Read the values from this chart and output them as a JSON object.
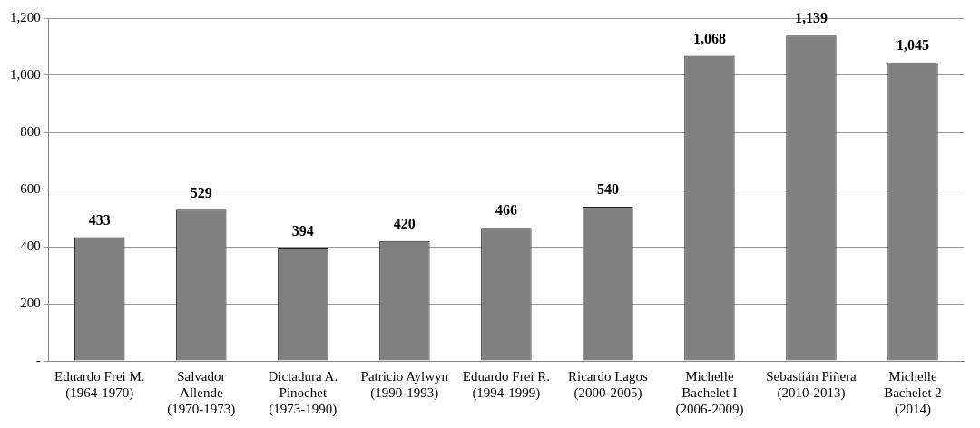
{
  "chart_data": {
    "type": "bar",
    "categories": [
      "Eduardo Frei M. (1964-1970)",
      "Salvador Allende (1970-1973)",
      "Dictadura A. Pinochet (1973-1990)",
      "Patricio Aylwyn (1990-1993)",
      "Eduardo Frei R. (1994-1999)",
      "Ricardo Lagos (2000-2005)",
      "Michelle Bachelet I (2006-2009)",
      "Sebastián Piñera (2010-2013)",
      "Michelle Bachelet 2 (2014)"
    ],
    "values": [
      433,
      529,
      394,
      420,
      466,
      540,
      1068,
      1139,
      1045
    ],
    "value_labels": [
      "433",
      "529",
      "394",
      "420",
      "466",
      "540",
      "1,068",
      "1,139",
      "1,045"
    ],
    "color": "#808080",
    "ylim": [
      0,
      1200
    ],
    "yticks": [
      {
        "value": 0,
        "label": "-"
      },
      200,
      400,
      600,
      800,
      {
        "value": 1000,
        "label": "1,000"
      },
      {
        "value": 1200,
        "label": "1,200"
      }
    ],
    "grid": "y"
  }
}
